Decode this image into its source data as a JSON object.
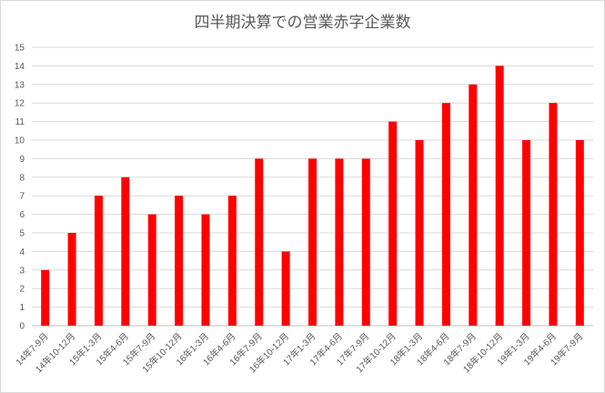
{
  "chart_data": {
    "type": "bar",
    "title": "四半期決算での営業赤字企業数",
    "xlabel": "",
    "ylabel": "",
    "ylim": [
      0,
      15
    ],
    "yticks": [
      0,
      1,
      2,
      3,
      4,
      5,
      6,
      7,
      8,
      9,
      10,
      11,
      12,
      13,
      14,
      15
    ],
    "grid": true,
    "legend": "none",
    "bar_color": "#ff0000",
    "categories": [
      "14年7-9月",
      "14年10-12月",
      "15年1-3月",
      "15年4-6月",
      "15年7-9月",
      "15年10-12月",
      "16年1-3月",
      "16年4-6月",
      "16年7-9月",
      "16年10-12月",
      "17年1-3月",
      "17年4-6月",
      "17年7-9月",
      "17年10-12月",
      "18年1-3月",
      "18年4-6月",
      "18年7-9月",
      "18年10-12月",
      "19年1-3月",
      "19年4-6月",
      "19年7-9月"
    ],
    "values": [
      3,
      5,
      7,
      8,
      6,
      7,
      6,
      7,
      9,
      4,
      9,
      9,
      9,
      11,
      10,
      12,
      13,
      14,
      10,
      12,
      10
    ]
  }
}
